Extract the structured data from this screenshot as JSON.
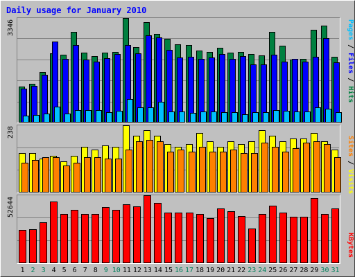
{
  "chart_data": {
    "type": "bar",
    "title": "Daily usage for January 2010",
    "days": [
      "1",
      "2",
      "3",
      "4",
      "5",
      "6",
      "7",
      "8",
      "9",
      "10",
      "11",
      "12",
      "13",
      "14",
      "15",
      "16",
      "17",
      "18",
      "19",
      "20",
      "21",
      "22",
      "23",
      "24",
      "25",
      "26",
      "27",
      "28",
      "29",
      "30",
      "31"
    ],
    "weekend_days": [
      "2",
      "3",
      "9",
      "10",
      "16",
      "17",
      "23",
      "24",
      "30",
      "31"
    ],
    "panels": [
      {
        "name": "hits-files-pages",
        "max_label": "3346",
        "ymax": 3346,
        "series": [
          {
            "name": "Hits",
            "color": "#008040",
            "values": [
              1130,
              1220,
              1600,
              2200,
              2160,
              2890,
              2220,
              2120,
              2220,
              2260,
              3346,
              2410,
              3220,
              2830,
              2680,
              2500,
              2480,
              2290,
              2260,
              2380,
              2220,
              2260,
              2190,
              2140,
              2890,
              2460,
              2010,
              2030,
              2970,
              3100,
              2100
            ]
          },
          {
            "name": "Files",
            "color": "#0000ff",
            "values": [
              1060,
              1170,
              1520,
              2580,
              2030,
              2470,
              2010,
              1940,
              2060,
              2180,
              2480,
              2210,
              2780,
              2720,
              2320,
              2080,
              2090,
              2020,
              2080,
              2180,
              2040,
              2110,
              1860,
              1850,
              2160,
              1950,
              2040,
              1930,
              2100,
              2690,
              1920
            ]
          },
          {
            "name": "Pages",
            "color": "#00c0ff",
            "values": [
              190,
              220,
              260,
              480,
              270,
              390,
              380,
              370,
              320,
              350,
              740,
              460,
              470,
              640,
              330,
              340,
              300,
              340,
              330,
              310,
              320,
              250,
              310,
              320,
              370,
              350,
              330,
              340,
              460,
              430,
              320
            ]
          }
        ]
      },
      {
        "name": "visits-sites",
        "max_label": "238",
        "ymax": 238,
        "series": [
          {
            "name": "Visits",
            "color": "#ffff00",
            "values": [
              140,
              140,
              120,
              130,
              108,
              130,
              162,
              150,
              165,
              162,
              238,
              200,
              220,
              200,
              170,
              160,
              170,
              210,
              180,
              160,
              180,
              170,
              180,
              220,
              200,
              180,
              190,
              190,
              210,
              180,
              150
            ]
          },
          {
            "name": "Sites",
            "color": "#ff8000",
            "values": [
              105,
              115,
              125,
              125,
              95,
              105,
              125,
              125,
              120,
              120,
              150,
              180,
              185,
              180,
              145,
              150,
              145,
              160,
              145,
              145,
              150,
              140,
              140,
              175,
              160,
              145,
              155,
              175,
              180,
              170,
              125
            ]
          }
        ]
      },
      {
        "name": "kbytes",
        "max_label": "52644",
        "ymax": 52644,
        "series": [
          {
            "name": "KBytes",
            "color": "#ff0000",
            "values": [
              25500,
              26000,
              31500,
              47500,
              38000,
              41000,
              38000,
              38000,
              43500,
              41500,
              45500,
              44000,
              52644,
              46800,
              39000,
              39000,
              39000,
              38000,
              35000,
              42500,
              40000,
              36500,
              26500,
              38000,
              44500,
              39000,
              36000,
              36000,
              50500,
              38000,
              42500
            ]
          }
        ]
      }
    ],
    "right_labels": {
      "pages": "Pages",
      "files": "Files",
      "hits": "Hits",
      "sites": "Sites",
      "visits": "Visits",
      "kbytes": "KBytes",
      "separator": " / "
    }
  },
  "colors": {
    "background": "#c0c0c0",
    "plot": "#c0c0c0",
    "title": "#0000ff",
    "weekday_label": "#000000",
    "weekend_label": "#00805c",
    "gridline": "#808080"
  }
}
